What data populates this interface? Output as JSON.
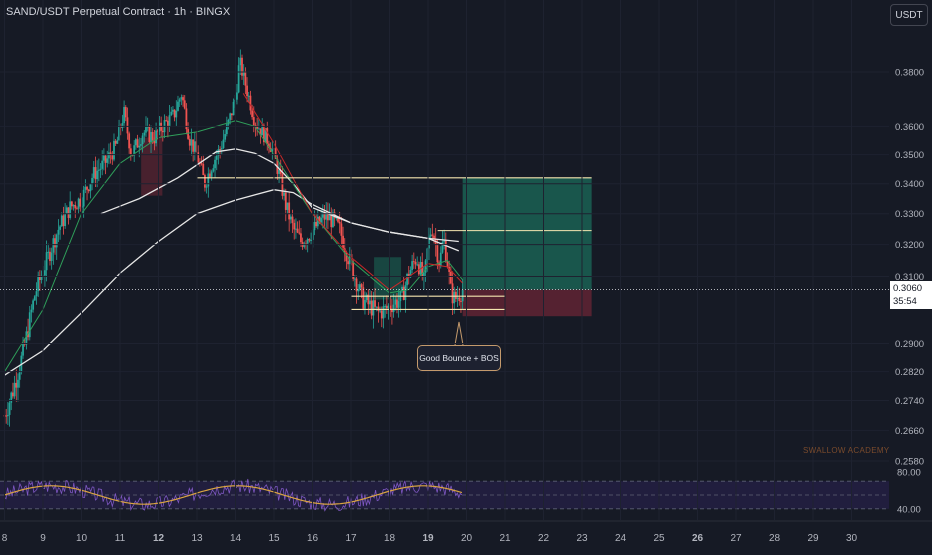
{
  "header": {
    "title": "SAND/USDT Perpetual Contract · 1h · BINGX",
    "currency_button": "USDT"
  },
  "price_tag": {
    "price": "0.3060",
    "countdown": "35:54"
  },
  "annotation": "Good Bounce + BOS",
  "watermark": "SWALLOW ACADEMY",
  "colors": {
    "background": "#161a25",
    "bull": "#26a69a",
    "bear": "#ef5350",
    "sma_white": "#e6e6e6",
    "ema_green": "#2f9e5a",
    "ema_red": "#c62828",
    "level_line": "#f5e6b0",
    "target_zone": "#1b6b5a",
    "stop_zone": "#6b2636",
    "rsi_line": "#7e57c2",
    "rsi_ma": "#d9a441"
  },
  "chart_data": {
    "type": "candlestick",
    "y_scale": "log",
    "ylim": [
      0.258,
      0.39
    ],
    "y_ticks": [
      "0.3800",
      "0.3600",
      "0.3500",
      "0.3400",
      "0.3300",
      "0.3200",
      "0.3100",
      "0.2900",
      "0.2820",
      "0.2740",
      "0.2660",
      "0.2580"
    ],
    "x_ticks": [
      {
        "label": "8",
        "bold": false
      },
      {
        "label": "9",
        "bold": false
      },
      {
        "label": "10",
        "bold": false
      },
      {
        "label": "11",
        "bold": false
      },
      {
        "label": "12",
        "bold": true
      },
      {
        "label": "13",
        "bold": false
      },
      {
        "label": "14",
        "bold": false
      },
      {
        "label": "15",
        "bold": false
      },
      {
        "label": "16",
        "bold": false
      },
      {
        "label": "17",
        "bold": false
      },
      {
        "label": "18",
        "bold": false
      },
      {
        "label": "19",
        "bold": true
      },
      {
        "label": "20",
        "bold": false
      },
      {
        "label": "21",
        "bold": false
      },
      {
        "label": "22",
        "bold": false
      },
      {
        "label": "23",
        "bold": false
      },
      {
        "label": "24",
        "bold": false
      },
      {
        "label": "25",
        "bold": false
      },
      {
        "label": "26",
        "bold": true
      },
      {
        "label": "27",
        "bold": false
      },
      {
        "label": "28",
        "bold": false
      },
      {
        "label": "29",
        "bold": false
      },
      {
        "label": "30",
        "bold": false
      }
    ],
    "last_price": 0.306,
    "price_path": [
      [
        8.0,
        0.27
      ],
      [
        8.2,
        0.276
      ],
      [
        8.5,
        0.288
      ],
      [
        8.8,
        0.305
      ],
      [
        9.1,
        0.315
      ],
      [
        9.4,
        0.325
      ],
      [
        9.7,
        0.332
      ],
      [
        10.0,
        0.335
      ],
      [
        10.3,
        0.343
      ],
      [
        10.6,
        0.347
      ],
      [
        10.9,
        0.353
      ],
      [
        11.1,
        0.365
      ],
      [
        11.3,
        0.35
      ],
      [
        11.6,
        0.358
      ],
      [
        11.9,
        0.356
      ],
      [
        12.1,
        0.36
      ],
      [
        12.4,
        0.364
      ],
      [
        12.6,
        0.372
      ],
      [
        12.8,
        0.356
      ],
      [
        13.0,
        0.35
      ],
      [
        13.2,
        0.34
      ],
      [
        13.4,
        0.347
      ],
      [
        13.6,
        0.352
      ],
      [
        13.8,
        0.36
      ],
      [
        14.0,
        0.37
      ],
      [
        14.1,
        0.384
      ],
      [
        14.3,
        0.373
      ],
      [
        14.5,
        0.362
      ],
      [
        14.7,
        0.358
      ],
      [
        14.9,
        0.354
      ],
      [
        15.1,
        0.345
      ],
      [
        15.3,
        0.333
      ],
      [
        15.5,
        0.325
      ],
      [
        15.7,
        0.321
      ],
      [
        15.9,
        0.323
      ],
      [
        16.1,
        0.326
      ],
      [
        16.3,
        0.329
      ],
      [
        16.5,
        0.328
      ],
      [
        16.7,
        0.325
      ],
      [
        16.9,
        0.317
      ],
      [
        17.1,
        0.31
      ],
      [
        17.3,
        0.303
      ],
      [
        17.5,
        0.301
      ],
      [
        17.7,
        0.299
      ],
      [
        17.9,
        0.3
      ],
      [
        18.1,
        0.302
      ],
      [
        18.3,
        0.303
      ],
      [
        18.5,
        0.311
      ],
      [
        18.7,
        0.316
      ],
      [
        18.9,
        0.308
      ],
      [
        19.0,
        0.32
      ],
      [
        19.1,
        0.326
      ],
      [
        19.3,
        0.314
      ],
      [
        19.4,
        0.322
      ],
      [
        19.5,
        0.315
      ],
      [
        19.6,
        0.305
      ],
      [
        19.7,
        0.303
      ],
      [
        19.8,
        0.3045
      ],
      [
        19.9,
        0.306
      ]
    ],
    "moving_averages": [
      {
        "name": "slow",
        "color_key": "sma_white",
        "values": [
          [
            8.0,
            0.281
          ],
          [
            9.0,
            0.288
          ],
          [
            10.0,
            0.299
          ],
          [
            11.0,
            0.311
          ],
          [
            12.0,
            0.321
          ],
          [
            13.0,
            0.33
          ],
          [
            14.0,
            0.3345
          ],
          [
            15.0,
            0.338
          ],
          [
            15.5,
            0.337
          ],
          [
            16.0,
            0.333
          ],
          [
            17.0,
            0.327
          ],
          [
            18.0,
            0.324
          ],
          [
            19.0,
            0.322
          ],
          [
            19.8,
            0.321
          ]
        ]
      },
      {
        "name": "mid",
        "color_key": "sma_white",
        "values": [
          [
            10.5,
            0.33
          ],
          [
            11.5,
            0.335
          ],
          [
            12.5,
            0.342
          ],
          [
            13.5,
            0.351
          ],
          [
            14.0,
            0.352
          ],
          [
            14.5,
            0.3505
          ],
          [
            15.0,
            0.347
          ],
          [
            15.5,
            0.34
          ],
          [
            16.0,
            0.332
          ],
          [
            17.0,
            0.327
          ],
          [
            18.0,
            0.324
          ],
          [
            19.0,
            0.322
          ],
          [
            19.8,
            0.318
          ]
        ]
      },
      {
        "name": "fast",
        "color_key": "ema_green",
        "values": [
          [
            8.0,
            0.282
          ],
          [
            9.0,
            0.3
          ],
          [
            10.0,
            0.33
          ],
          [
            11.0,
            0.347
          ],
          [
            12.0,
            0.356
          ],
          [
            13.0,
            0.358
          ],
          [
            14.0,
            0.362
          ],
          [
            14.5,
            0.36
          ],
          [
            15.0,
            0.35
          ],
          [
            16.0,
            0.33
          ],
          [
            17.0,
            0.315
          ],
          [
            18.0,
            0.305
          ],
          [
            18.5,
            0.306
          ],
          [
            19.0,
            0.313
          ],
          [
            19.5,
            0.315
          ],
          [
            19.9,
            0.309
          ]
        ]
      }
    ],
    "levels": [
      {
        "price": 0.342,
        "from": 13.0,
        "to": 23.25
      },
      {
        "price": 0.3245,
        "from": 19.25,
        "to": 23.25
      },
      {
        "price": 0.304,
        "from": 17.0,
        "to": 21.0
      },
      {
        "price": 0.3,
        "from": 17.0,
        "to": 21.0
      }
    ],
    "position": {
      "entry": 0.306,
      "target": 0.342,
      "stop": 0.298,
      "from": 19.9,
      "to": 23.25
    },
    "rsi": {
      "ticks": [
        "80.00",
        "40.00"
      ],
      "band": [
        40,
        70
      ],
      "range": [
        30,
        80
      ]
    }
  }
}
